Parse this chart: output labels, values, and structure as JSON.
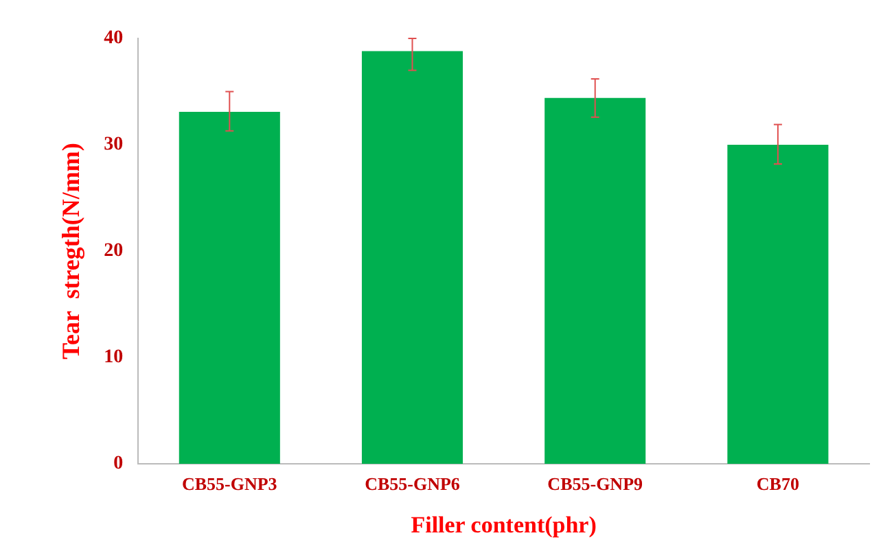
{
  "chart_data": {
    "type": "bar",
    "xlabel": "Filler content(phr)",
    "ylabel": "Tear  stregth(N/mm)",
    "categories": [
      "CB55-GNP3",
      "CB55-GNP6",
      "CB55-GNP9",
      "CB70"
    ],
    "values": [
      33.1,
      38.8,
      34.4,
      30.0
    ],
    "errors": [
      [
        31.3,
        35.0
      ],
      [
        37.0,
        40.0
      ],
      [
        32.6,
        36.2
      ],
      [
        28.2,
        31.9
      ]
    ],
    "color": "#00b050",
    "ylim": [
      0,
      40
    ],
    "yticks": [
      0,
      10,
      20,
      30,
      40
    ],
    "grid": false,
    "legend": false
  }
}
